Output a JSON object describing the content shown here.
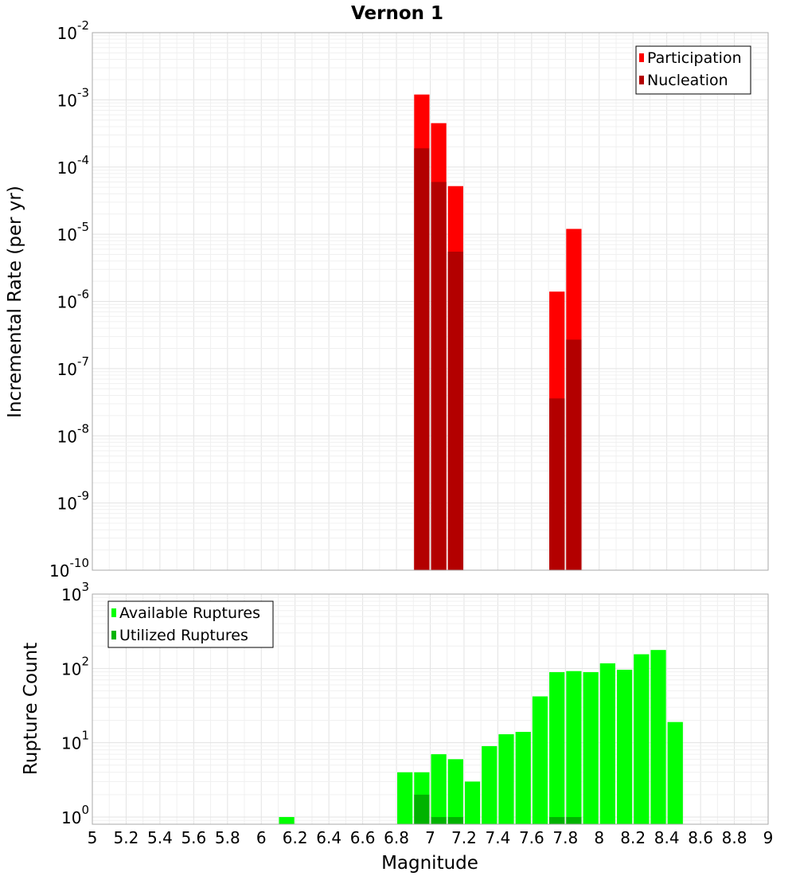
{
  "chart_data": [
    {
      "type": "bar",
      "title": "Vernon 1",
      "xlabel": "Magnitude",
      "ylabel": "Incremental Rate (per yr)",
      "yscale": "log",
      "ylim": [
        1e-10,
        0.01
      ],
      "xlim": [
        5,
        9
      ],
      "bin_width": 0.1,
      "legend_position": "top-right",
      "grid": true,
      "series": [
        {
          "name": "Participation",
          "color": "#ff0000",
          "x": [
            6.95,
            7.05,
            7.15,
            7.75,
            7.85
          ],
          "values": [
            0.0012,
            0.00045,
            5.2e-05,
            1.4e-06,
            1.2e-05
          ]
        },
        {
          "name": "Nucleation",
          "color": "#b30000",
          "x": [
            6.95,
            7.05,
            7.15,
            7.75,
            7.85
          ],
          "values": [
            0.00019,
            6e-05,
            5.5e-06,
            3.6e-08,
            2.7e-07
          ]
        }
      ]
    },
    {
      "type": "bar",
      "xlabel": "Magnitude",
      "ylabel": "Rupture Count",
      "yscale": "log",
      "ylim": [
        0.8,
        1000
      ],
      "xlim": [
        5,
        9
      ],
      "bin_width": 0.1,
      "legend_position": "top-left",
      "grid": true,
      "series": [
        {
          "name": "Available Ruptures",
          "color": "#00ff00",
          "x": [
            6.15,
            6.85,
            6.95,
            7.05,
            7.15,
            7.25,
            7.35,
            7.45,
            7.55,
            7.65,
            7.75,
            7.85,
            7.95,
            8.05,
            8.15,
            8.25,
            8.35,
            8.45
          ],
          "values": [
            1,
            4,
            4,
            7,
            6,
            3,
            9,
            13,
            14,
            42,
            89,
            92,
            89,
            117,
            96,
            155,
            177,
            19
          ]
        },
        {
          "name": "Utilized Ruptures",
          "color": "#00b300",
          "x": [
            6.95,
            7.05,
            7.15,
            7.75,
            7.85
          ],
          "values": [
            2,
            1,
            1,
            1,
            1
          ]
        }
      ]
    }
  ],
  "x_ticks": [
    "5",
    "5.2",
    "5.4",
    "5.6",
    "5.8",
    "6",
    "6.2",
    "6.4",
    "6.6",
    "6.8",
    "7",
    "7.2",
    "7.4",
    "7.6",
    "7.8",
    "8",
    "8.2",
    "8.4",
    "8.6",
    "8.8",
    "9"
  ],
  "top_y_ticks": [
    {
      "base": "10",
      "exp": "-2"
    },
    {
      "base": "10",
      "exp": "-3"
    },
    {
      "base": "10",
      "exp": "-4"
    },
    {
      "base": "10",
      "exp": "-5"
    },
    {
      "base": "10",
      "exp": "-6"
    },
    {
      "base": "10",
      "exp": "-7"
    },
    {
      "base": "10",
      "exp": "-8"
    },
    {
      "base": "10",
      "exp": "-9"
    },
    {
      "base": "10",
      "exp": "-10"
    }
  ],
  "bottom_y_ticks": [
    {
      "base": "10",
      "exp": "3"
    },
    {
      "base": "10",
      "exp": "2"
    },
    {
      "base": "10",
      "exp": "1"
    },
    {
      "base": "10",
      "exp": "0"
    }
  ]
}
